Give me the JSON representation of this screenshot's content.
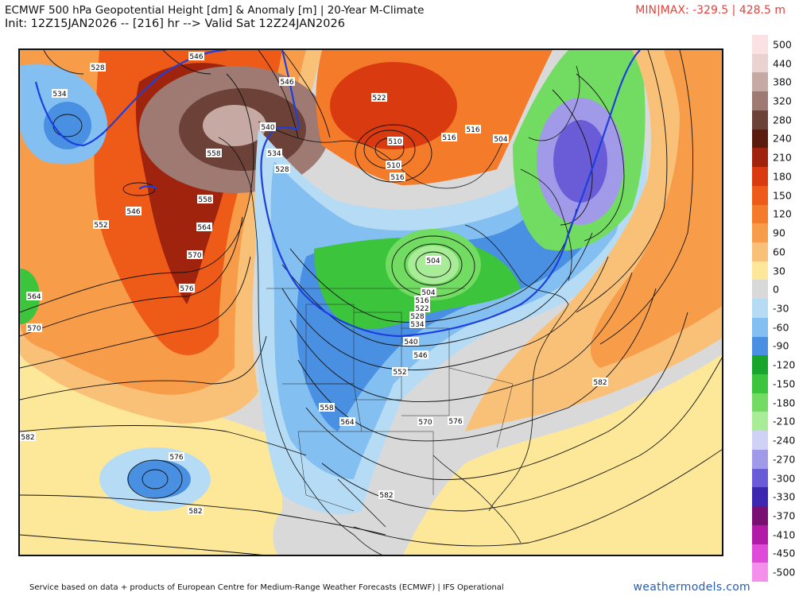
{
  "header": {
    "title_line1": "ECMWF 500 hPa Geopotential Height [dm] & Anomaly [m] | 20-Year M-Climate",
    "title_line2": "Init: 12Z15JAN2026 -- [216] hr --> Valid Sat 12Z24JAN2026",
    "minmax": "MIN|MAX: -329.5 | 428.5 m"
  },
  "colorbar": {
    "entries": [
      {
        "label": "500",
        "color": "#fbe1e3"
      },
      {
        "label": "440",
        "color": "#e9d2cf"
      },
      {
        "label": "380",
        "color": "#c6a9a2"
      },
      {
        "label": "320",
        "color": "#9e7a72"
      },
      {
        "label": "280",
        "color": "#6b4138"
      },
      {
        "label": "240",
        "color": "#5a1c0f"
      },
      {
        "label": "210",
        "color": "#a0240d"
      },
      {
        "label": "180",
        "color": "#d93a10"
      },
      {
        "label": "150",
        "color": "#ee5a18"
      },
      {
        "label": "120",
        "color": "#f47b2a"
      },
      {
        "label": "90",
        "color": "#f79d4a"
      },
      {
        "label": "60",
        "color": "#f9c177"
      },
      {
        "label": "30",
        "color": "#fde89a"
      },
      {
        "label": "0",
        "color": "#d9d9d9"
      },
      {
        "label": "-30",
        "color": "#b6dcf5"
      },
      {
        "label": "-60",
        "color": "#83bff0"
      },
      {
        "label": "-90",
        "color": "#4a90e2"
      },
      {
        "label": "-120",
        "color": "#17a62b"
      },
      {
        "label": "-150",
        "color": "#3dc43d"
      },
      {
        "label": "-180",
        "color": "#72dc62"
      },
      {
        "label": "-210",
        "color": "#a8ec98"
      },
      {
        "label": "-240",
        "color": "#cfd2f4"
      },
      {
        "label": "-270",
        "color": "#a19ae8"
      },
      {
        "label": "-300",
        "color": "#6a5cd6"
      },
      {
        "label": "-330",
        "color": "#3d27b0"
      },
      {
        "label": "-370",
        "color": "#7a0f73"
      },
      {
        "label": "-410",
        "color": "#b21aa8"
      },
      {
        "label": "-450",
        "color": "#e04ad8"
      },
      {
        "label": "-500",
        "color": "#f490ec"
      }
    ]
  },
  "map": {
    "contour_labels": [
      "528",
      "546",
      "534",
      "540",
      "546",
      "558",
      "522",
      "516",
      "510",
      "516",
      "516",
      "504",
      "534",
      "528",
      "546",
      "552",
      "558",
      "564",
      "570",
      "576",
      "564",
      "570",
      "504",
      "516",
      "522",
      "528",
      "534",
      "540",
      "546",
      "552",
      "558",
      "564",
      "570",
      "576",
      "576",
      "582",
      "582",
      "582",
      "582"
    ],
    "low_labels": [
      "510",
      "504"
    ]
  },
  "footer": {
    "source": "Service based on data + products of European Centre for Medium-Range Weather Forecasts (ECMWF) | IFS Operational",
    "brand": "weathermodels.com"
  }
}
